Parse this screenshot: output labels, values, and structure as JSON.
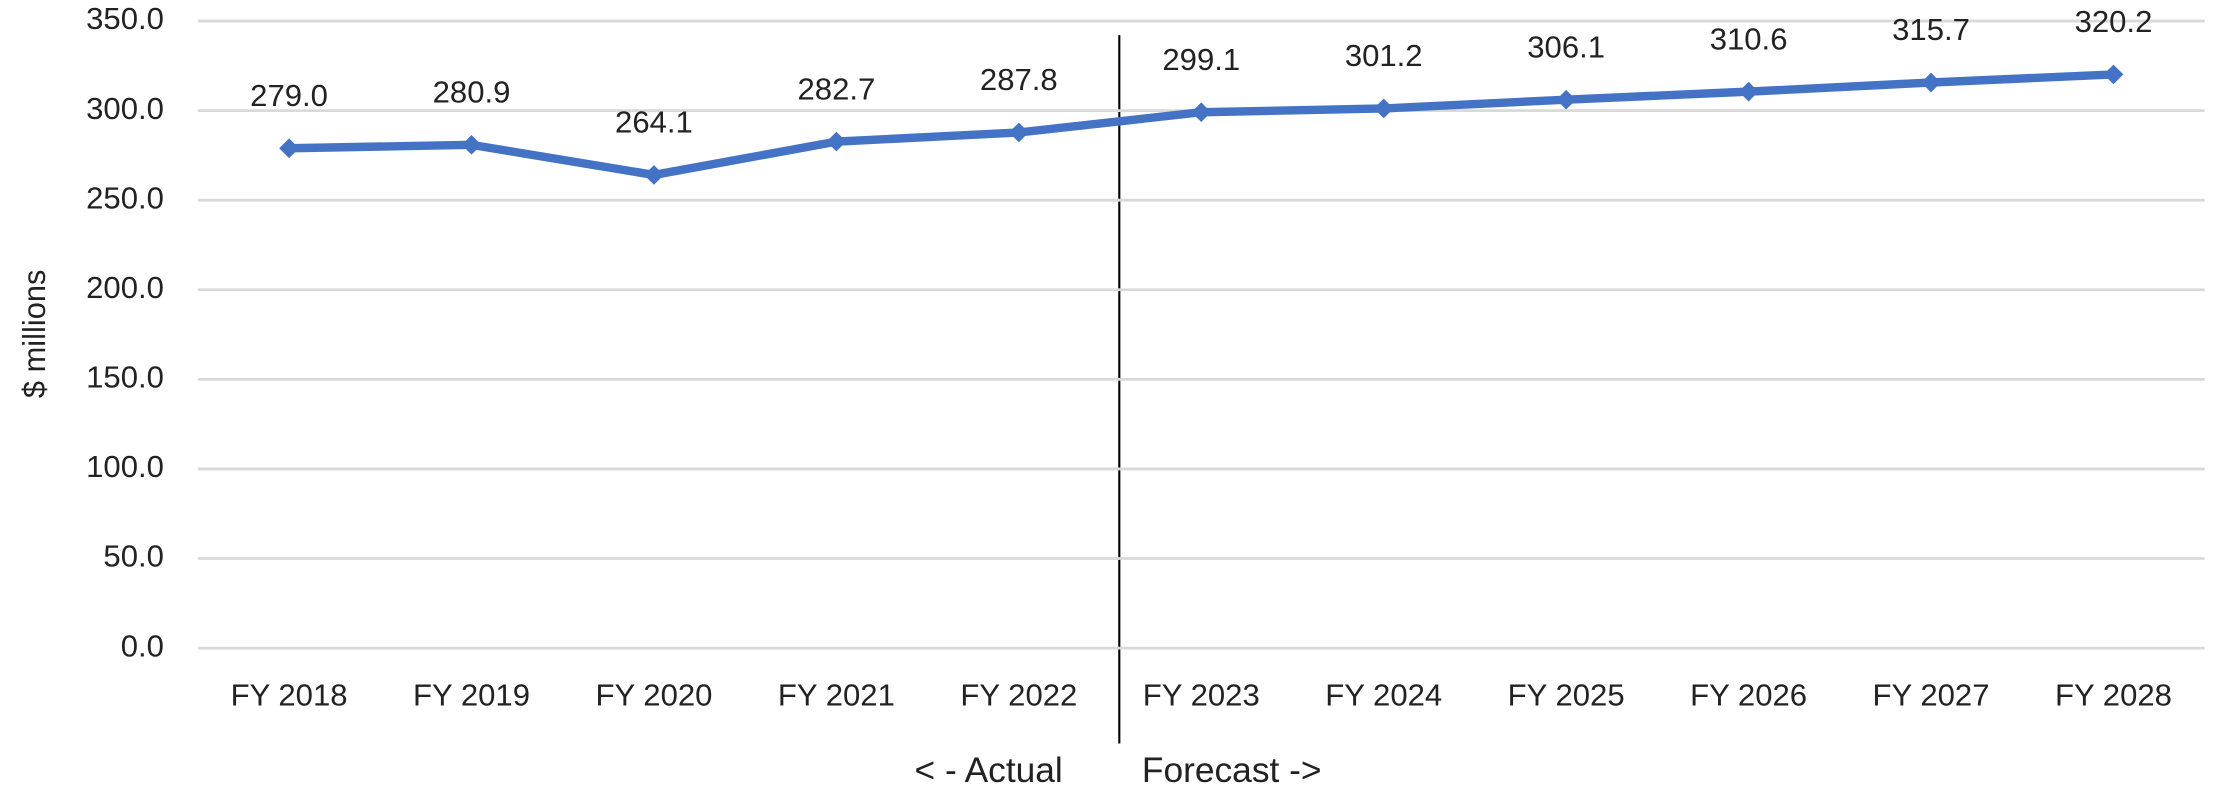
{
  "chart_data": {
    "type": "line",
    "y_label": "$ millions",
    "categories": [
      "FY 2018",
      "FY 2019",
      "FY 2020",
      "FY 2021",
      "FY 2022",
      "FY 2023",
      "FY 2024",
      "FY 2025",
      "FY 2026",
      "FY 2027",
      "FY 2028"
    ],
    "values": [
      279.0,
      280.9,
      264.1,
      282.7,
      287.8,
      299.1,
      301.2,
      306.1,
      310.6,
      315.7,
      320.2
    ],
    "value_labels": [
      "279.0",
      "280.9",
      "264.1",
      "282.7",
      "287.8",
      "299.1",
      "301.2",
      "306.1",
      "310.6",
      "315.7",
      "320.2"
    ],
    "color": "#4472c4",
    "ylim": [
      0,
      350
    ],
    "yticks": [
      {
        "value": 0,
        "label": "0.0"
      },
      {
        "value": 50,
        "label": "50.0"
      },
      {
        "value": 100,
        "label": "100.0"
      },
      {
        "value": 150,
        "label": "150.0"
      },
      {
        "value": 200,
        "label": "200.0"
      },
      {
        "value": 250,
        "label": "250.0"
      },
      {
        "value": 300,
        "label": "300.0"
      },
      {
        "value": 350,
        "label": "350.0"
      }
    ],
    "grid": true,
    "annotations": [
      "< - Actual",
      "Forecast ->"
    ]
  }
}
